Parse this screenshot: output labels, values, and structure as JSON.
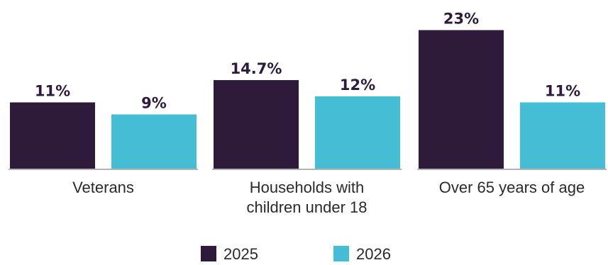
{
  "chart_data": {
    "type": "bar",
    "categories": [
      [
        "Veterans"
      ],
      [
        "Households with",
        "children under 18"
      ],
      [
        "Over 65 years of age"
      ]
    ],
    "series": [
      {
        "name": "2025",
        "color": "#2e1a3b",
        "values": [
          11,
          14.7,
          23
        ],
        "labels": [
          "11%",
          "14.7%",
          "23%"
        ]
      },
      {
        "name": "2026",
        "color": "#45bdd4",
        "values": [
          9,
          12,
          11
        ],
        "labels": [
          "9%",
          "12%",
          "11%"
        ]
      }
    ],
    "ylim": [
      0,
      25
    ],
    "grid": false,
    "legend": "bottom-center",
    "title": "",
    "xlabel": "",
    "ylabel": ""
  }
}
